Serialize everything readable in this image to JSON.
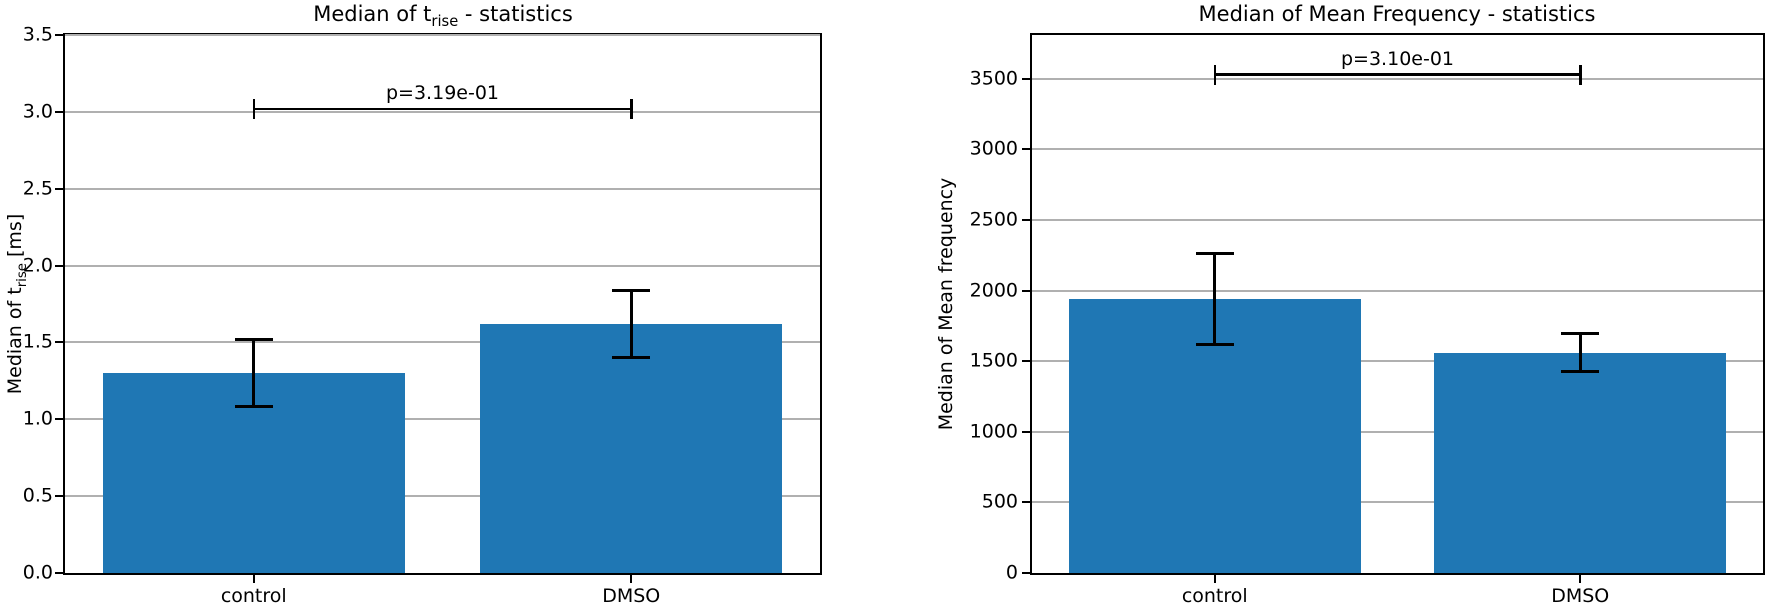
{
  "colors": {
    "bar": "#1f77b4",
    "grid": "#b0b0b0",
    "axis": "#000000",
    "error_bar": "#000000",
    "text": "#000000",
    "background": "#ffffff"
  },
  "chart_data": [
    {
      "type": "bar",
      "title_text": "Median of t_rise - statistics",
      "title": {
        "prefix": "Median of t",
        "sub": "rise",
        "suffix": " - statistics"
      },
      "ylabel_text": "Median of t_rise [ms]",
      "ylabel": {
        "prefix": "Median of t",
        "sub": "rise",
        "suffix": " [ms]"
      },
      "categories": [
        "control",
        "DMSO"
      ],
      "values": [
        1.3,
        1.62
      ],
      "error_bars": [
        0.22,
        0.22
      ],
      "ylim": [
        0,
        3.5
      ],
      "ytick_values": [
        0,
        0.5,
        1.0,
        1.5,
        2.0,
        2.5,
        3.0,
        3.5
      ],
      "ytick_labels": [
        "0.0",
        "0.5",
        "1.0",
        "1.5",
        "2.0",
        "2.5",
        "3.0",
        "3.5"
      ],
      "grid": true,
      "legend": "none",
      "significance": {
        "label": "p=3.19e-01",
        "bracket_y": 3.02
      }
    },
    {
      "type": "bar",
      "title_text": "Median of Mean Frequency - statistics",
      "title": {
        "prefix": "Median of Mean Frequency - statistics",
        "sub": "",
        "suffix": ""
      },
      "ylabel_text": "Median of Mean frequency",
      "ylabel": {
        "prefix": "Median of Mean frequency",
        "sub": "",
        "suffix": ""
      },
      "categories": [
        "control",
        "DMSO"
      ],
      "values": [
        1940,
        1560
      ],
      "error_bars": [
        320,
        135
      ],
      "ylim": [
        0,
        3810
      ],
      "ytick_values": [
        0,
        500,
        1000,
        1500,
        2000,
        2500,
        3000,
        3500
      ],
      "ytick_labels": [
        "0",
        "500",
        "1000",
        "1500",
        "2000",
        "2500",
        "3000",
        "3500"
      ],
      "grid": true,
      "legend": "none",
      "significance": {
        "label": "p=3.10e-01",
        "bracket_y": 3530
      }
    }
  ]
}
